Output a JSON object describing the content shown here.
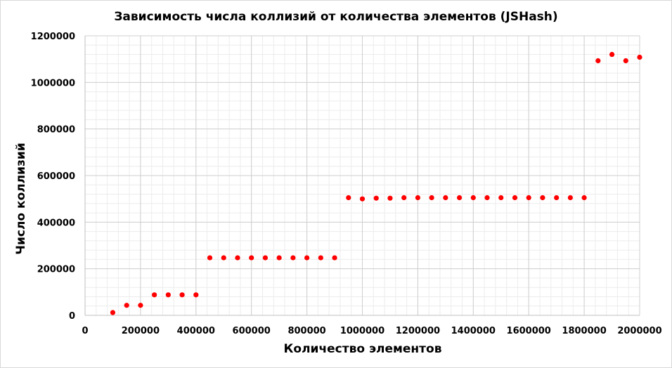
{
  "chart_data": {
    "type": "scatter",
    "title": "Зависимость числа коллизий от количества элементов (JSHash)",
    "xlabel": "Количество элементов",
    "ylabel": "Число коллизий",
    "xlim": [
      0,
      2000000
    ],
    "ylim": [
      0,
      1200000
    ],
    "x_ticks": [
      0,
      200000,
      400000,
      600000,
      800000,
      1000000,
      1200000,
      1400000,
      1600000,
      1800000,
      2000000
    ],
    "x_tick_labels": [
      "0",
      "200000",
      "400000",
      "600000",
      "800000",
      "1000000",
      "1200000",
      "1400000",
      "1600000",
      "1800000",
      "2000000"
    ],
    "y_ticks": [
      0,
      200000,
      400000,
      600000,
      800000,
      1000000,
      1200000
    ],
    "y_tick_labels": [
      "0",
      "200000",
      "400000",
      "600000",
      "800000",
      "1000000",
      "1200000"
    ],
    "grid": true,
    "minor_grid": true,
    "legend": "none",
    "marker_color": "#ff0000",
    "series": [
      {
        "x": [
          100000,
          150000,
          200000,
          250000,
          300000,
          350000,
          400000,
          450000,
          500000,
          550000,
          600000,
          650000,
          700000,
          750000,
          800000,
          850000,
          900000,
          950000,
          1000000,
          1050000,
          1100000,
          1150000,
          1200000,
          1250000,
          1300000,
          1350000,
          1400000,
          1450000,
          1500000,
          1550000,
          1600000,
          1650000,
          1700000,
          1750000,
          1800000,
          1850000,
          1900000,
          1950000,
          2000000
        ],
        "y": [
          12000,
          43000,
          43000,
          88000,
          88000,
          88000,
          88000,
          247000,
          247000,
          247000,
          247000,
          247000,
          247000,
          247000,
          247000,
          247000,
          247000,
          505000,
          500000,
          503000,
          503000,
          505000,
          505000,
          505000,
          505000,
          505000,
          505000,
          505000,
          505000,
          505000,
          505000,
          505000,
          505000,
          505000,
          505000,
          1093000,
          1120000,
          1093000,
          1108000
        ]
      }
    ]
  }
}
